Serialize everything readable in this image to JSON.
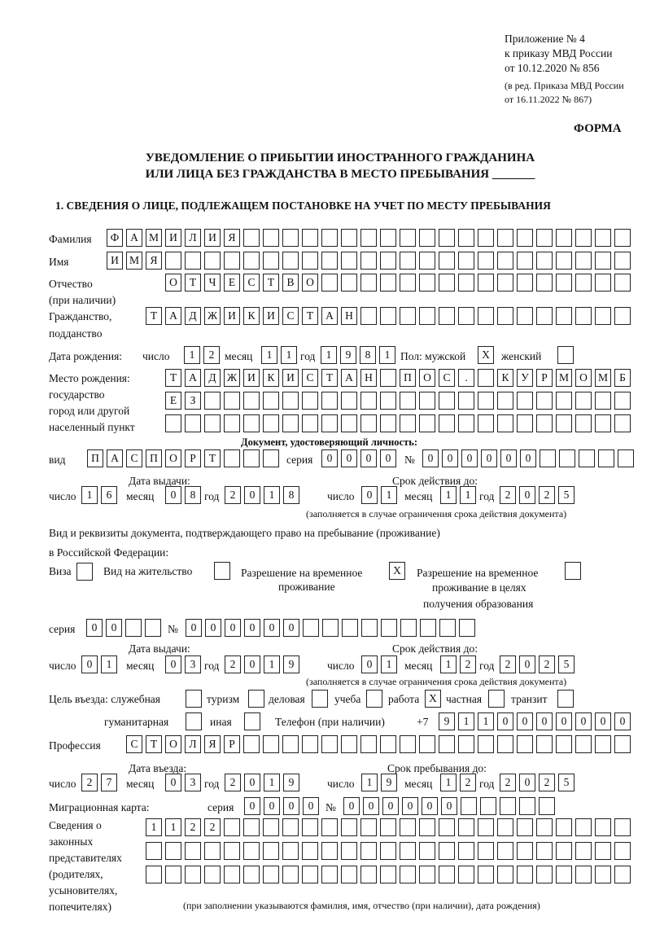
{
  "header": {
    "appendix": "Приложение № 4",
    "order": "к приказу МВД России",
    "date": "от 10.12.2020 № 856",
    "edit1": "(в ред. Приказа МВД России",
    "edit2": "от 16.11.2022 № 867)",
    "form": "ФОРМА",
    "title1": "УВЕДОМЛЕНИЕ О ПРИБЫТИИ ИНОСТРАННОГО ГРАЖДАНИНА",
    "title2": "ИЛИ ЛИЦА БЕЗ ГРАЖДАНСТВА В МЕСТО ПРЕБЫВАНИЯ _______",
    "section": "1. СВЕДЕНИЯ О ЛИЦЕ, ПОДЛЕЖАЩЕМ ПОСТАНОВКЕ НА УЧЕТ ПО МЕСТУ ПРЕБЫВАНИЯ"
  },
  "labels": {
    "surname": "Фамилия",
    "name": "Имя",
    "patronymic": "Отчество",
    "patronymic2": "(при наличии)",
    "citizenship": "Гражданство,",
    "citizenship2": "подданство",
    "birth_date": "Дата рождения:",
    "day": "число",
    "month": "месяц",
    "year": "год",
    "sex": "Пол: мужской",
    "female": "женский",
    "birthplace1": "Место рождения:",
    "birthplace2": "государство",
    "birthplace3": "город или другой",
    "birthplace4": "населенный пункт",
    "id_doc": "Документ, удостоверяющий личность:",
    "kind": "вид",
    "series": "серия",
    "number": "№",
    "issue_date": "Дата выдачи:",
    "valid_until": "Срок действия до:",
    "validity_note": "(заполняется в случае ограничения срока действия документа)",
    "right_doc1": "Вид и реквизиты документа, подтверждающего право на пребывание (проживание)",
    "right_doc2": "в Российской Федерации:",
    "visa": "Виза",
    "residence": "Вид на жительство",
    "trp1": "Разрешение на временное",
    "trp2": "проживание",
    "trp_edu1": "Разрешение на временное",
    "trp_edu2": "проживание в целях",
    "trp_edu3": "получения образования",
    "purpose": "Цель въезда: служебная",
    "tourism": "туризм",
    "business": "деловая",
    "study": "учеба",
    "work": "работа",
    "private": "частная",
    "transit": "транзит",
    "humanitarian": "гуманитарная",
    "other": "иная",
    "phone": "Телефон (при наличии)",
    "phone_prefix": "+7",
    "profession": "Профессия",
    "entry_date": "Дата въезда:",
    "stay_until": "Срок пребывания до:",
    "migration_card": "Миграционная карта:",
    "rep1": "Сведения о",
    "rep2": "законных",
    "rep3": "представителях",
    "rep4": "(родителях,",
    "rep5": "усыновителях,",
    "rep6": "попечителях)",
    "rep_note": "(при заполнении указываются фамилия, имя, отчество (при наличии), дата рождения)"
  },
  "person": {
    "surname": "ФАМИЛИЯ",
    "name": "ИМЯ",
    "patronymic": "ОТЧЕСТВО",
    "citizenship": "ТАДЖИКИСТАН",
    "birth_day": "12",
    "birth_month": "11",
    "birth_year": "1981",
    "male": "X",
    "female": "",
    "birthplace1": "ТАДЖИКИСТАН ПОС. КУРМОМБ",
    "birthplace2": "ЕЗ",
    "birthplace3": ""
  },
  "id_document": {
    "kind": "ПАСПОРТ",
    "series": "0000",
    "number": "000000",
    "issue_day": "16",
    "issue_month": "08",
    "issue_year": "2018",
    "valid_day": "01",
    "valid_month": "11",
    "valid_year": "2025"
  },
  "right_document": {
    "visa": "",
    "residence": "",
    "trp": "X",
    "trp_edu": "",
    "series": "00",
    "number": "000000",
    "issue_day": "01",
    "issue_month": "03",
    "issue_year": "2019",
    "valid_day": "01",
    "valid_month": "12",
    "valid_year": "2025"
  },
  "purpose": {
    "service": "",
    "tourism": "",
    "business": "",
    "study": "",
    "work": "X",
    "private": "",
    "transit": "",
    "humanitarian": "",
    "other": ""
  },
  "phone": "9110000000",
  "profession": "СТОЛЯР",
  "entry": {
    "day": "27",
    "month": "03",
    "year": "2019",
    "stay_day": "19",
    "stay_month": "12",
    "stay_year": "2025"
  },
  "migration_card": {
    "series": "0000",
    "number": "000000"
  },
  "representatives": {
    "row1": "1122",
    "row2": "",
    "row3": ""
  }
}
